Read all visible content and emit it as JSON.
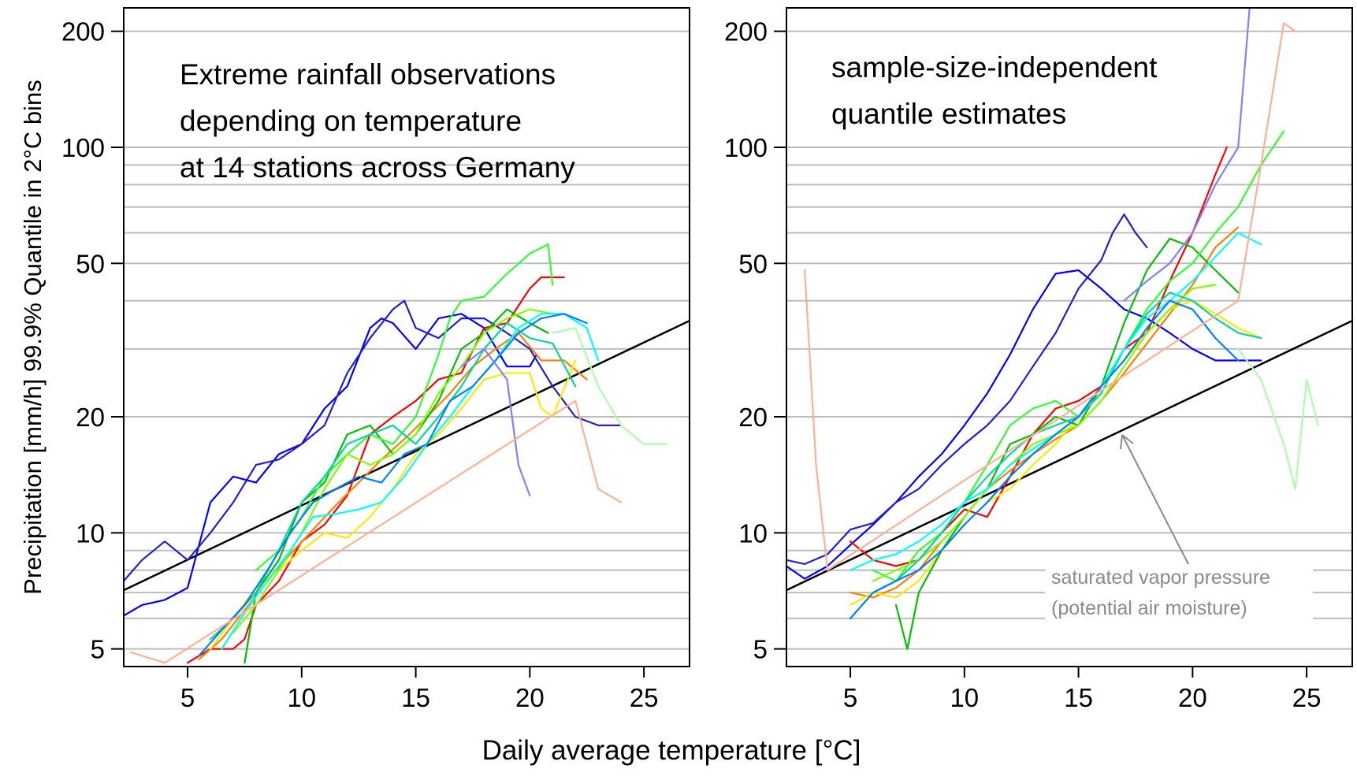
{
  "shared": {
    "ylabel": "Precipitation [mm/h]  99.9% Quantile in 2°C bins",
    "xlabel": "Daily average temperature  [°C]"
  },
  "chart_data": [
    {
      "type": "line",
      "panel": "left",
      "title_lines": [
        "Extreme rainfall observations",
        "depending on temperature",
        "at 14 stations across Germany"
      ],
      "x_ticks": [
        5,
        10,
        15,
        20,
        25
      ],
      "y_ticks": [
        5,
        10,
        20,
        50,
        100,
        200
      ],
      "y_scale": "log",
      "xlim": [
        2.2,
        27
      ],
      "ylim": [
        4.5,
        230
      ],
      "grid": "horizontal gray lines",
      "reference_line": {
        "label": "",
        "x": [
          2.2,
          27
        ],
        "y": [
          7.1,
          35.5
        ],
        "color": "#000000"
      },
      "series": [
        {
          "color": "#0000ff",
          "x": [
            2.2,
            3,
            4,
            5,
            6,
            7,
            8,
            9,
            10,
            11,
            12,
            13,
            13.5,
            14,
            15,
            16,
            17,
            18,
            19,
            20,
            20.3
          ],
          "y": [
            6.1,
            6.5,
            6.7,
            7.2,
            12,
            14,
            13.5,
            16,
            17,
            21,
            24,
            34,
            36,
            35,
            30,
            36,
            37,
            34,
            27,
            27,
            29
          ]
        },
        {
          "color": "#1f1fcf",
          "x": [
            2.2,
            3,
            4,
            5,
            6,
            7,
            8,
            9,
            10,
            11,
            12,
            13,
            14,
            14.5,
            15,
            16,
            17,
            18,
            19,
            20,
            21,
            22,
            23,
            24
          ],
          "y": [
            7.5,
            8.5,
            9.5,
            8.5,
            10,
            12,
            15,
            15.5,
            17,
            19,
            26,
            32,
            38,
            40,
            34,
            32,
            36,
            36,
            33,
            30,
            24,
            20,
            19,
            19
          ]
        },
        {
          "color": "#ff0000",
          "x": [
            5,
            6,
            7,
            7.5,
            8,
            9,
            10,
            11,
            12,
            13,
            14,
            15,
            16,
            17,
            18,
            19,
            20,
            20.5,
            21,
            21.5
          ],
          "y": [
            4.6,
            5,
            5,
            5.3,
            6.5,
            7.5,
            9.5,
            10.5,
            12.5,
            18,
            20,
            22,
            25,
            26,
            34,
            35,
            43,
            46,
            46,
            46
          ]
        },
        {
          "color": "#ff8000",
          "x": [
            5.5,
            6.5,
            7.5,
            8.5,
            9.5,
            10.5,
            11.5,
            12.5,
            13.5,
            14.5,
            15.5,
            16.5,
            17.5,
            18.5,
            19.5,
            20.5,
            21.5,
            22.5
          ],
          "y": [
            4.7,
            5.3,
            6.3,
            7.5,
            8.8,
            10.2,
            11.8,
            13.5,
            15.5,
            17.5,
            20,
            23,
            27,
            30,
            33,
            28,
            28,
            25
          ]
        },
        {
          "color": "#ffe800",
          "x": [
            6,
            7,
            8,
            9,
            10,
            11,
            12,
            13,
            14,
            15,
            16,
            17,
            18,
            19,
            20,
            20.5,
            21,
            22
          ],
          "y": [
            5,
            6,
            7.2,
            8,
            9,
            10,
            9.7,
            11,
            13,
            16,
            18,
            21,
            25,
            26,
            26,
            21,
            20,
            28
          ]
        },
        {
          "color": "#00c000",
          "x": [
            7.5,
            8,
            9,
            10,
            11,
            12,
            13,
            14,
            15,
            16,
            17,
            18,
            19,
            20,
            20.8
          ],
          "y": [
            4.6,
            7,
            8.5,
            12,
            13.5,
            18,
            19,
            16,
            18,
            22,
            30,
            33,
            38,
            35,
            33
          ]
        },
        {
          "color": "#2fff2f",
          "x": [
            8,
            9,
            10,
            11,
            12,
            13,
            14,
            15,
            16,
            16.5,
            17,
            18,
            19,
            20,
            20.8,
            21
          ],
          "y": [
            8,
            9,
            11,
            14,
            16,
            18,
            17,
            20,
            29,
            36,
            40,
            41,
            47,
            53,
            56,
            44
          ]
        },
        {
          "color": "#7fff00",
          "x": [
            7,
            8,
            9,
            10,
            11,
            12,
            13,
            14,
            15,
            16,
            17,
            18,
            19,
            20,
            21
          ],
          "y": [
            5.5,
            6.5,
            8,
            10,
            13,
            16,
            15,
            16,
            18,
            23,
            27,
            33,
            36,
            38,
            37
          ]
        },
        {
          "color": "#00d8a0",
          "x": [
            6,
            7,
            8,
            9,
            10,
            11,
            12,
            13,
            14,
            15,
            16,
            17,
            18,
            19,
            20,
            21,
            22
          ],
          "y": [
            5.3,
            6,
            7,
            9,
            12,
            14,
            17,
            18,
            19,
            17,
            20,
            24,
            30,
            35,
            32,
            31,
            24
          ]
        },
        {
          "color": "#00ffff",
          "x": [
            6.5,
            7.5,
            8.5,
            9.5,
            10.5,
            11.5,
            12.5,
            13.5,
            14.5,
            15.5,
            16.5,
            17.5,
            18.5,
            19.5,
            20.5,
            21.5,
            22.5,
            23
          ],
          "y": [
            5,
            6.2,
            7.5,
            9,
            11,
            11.2,
            11.5,
            12,
            14,
            17,
            20,
            24,
            28,
            34,
            37,
            37,
            34,
            28
          ]
        },
        {
          "color": "#0080ff",
          "x": [
            5.5,
            6.5,
            7.5,
            8.5,
            9.5,
            10.5,
            11.5,
            12.5,
            13.5,
            14.5,
            15.5,
            16.5,
            17.5,
            18.5,
            19.5,
            20.5,
            21.5,
            22.5
          ],
          "y": [
            4.8,
            5.6,
            6.5,
            8,
            10,
            12,
            13,
            14,
            13.5,
            16,
            17,
            22,
            24,
            28,
            33,
            36,
            37,
            35
          ]
        },
        {
          "color": "#8080ff",
          "x": [
            17,
            18,
            19,
            19.5,
            20
          ],
          "y": [
            27,
            30,
            25,
            15,
            12.5
          ]
        },
        {
          "color": "#ffb090",
          "x": [
            2.5,
            3,
            4,
            22,
            23,
            24
          ],
          "y": [
            4.9,
            4.8,
            4.6,
            22,
            13,
            12
          ]
        },
        {
          "color": "#aaffaa",
          "x": [
            21,
            22,
            23,
            24,
            25,
            26
          ],
          "y": [
            33,
            34,
            24,
            19,
            17,
            17
          ]
        }
      ]
    },
    {
      "type": "line",
      "panel": "right",
      "title_lines": [
        "sample-size-independent",
        "quantile estimates"
      ],
      "x_ticks": [
        5,
        10,
        15,
        20,
        25
      ],
      "y_ticks": [
        5,
        10,
        20,
        50,
        100,
        200
      ],
      "y_scale": "log",
      "xlim": [
        2.2,
        27
      ],
      "ylim": [
        4.5,
        230
      ],
      "grid": "horizontal gray lines",
      "reference_line": {
        "label": "",
        "x": [
          2.2,
          27
        ],
        "y": [
          7.1,
          35.5
        ],
        "color": "#000000"
      },
      "annotation_lines": [
        "saturated vapor pressure",
        "(potential air moisture)"
      ],
      "series": [
        {
          "color": "#0000ff",
          "x": [
            2.2,
            3,
            4,
            5,
            6,
            7,
            8,
            9,
            10,
            11,
            12,
            13,
            14,
            15,
            16,
            17,
            18,
            19,
            20,
            21,
            22,
            23
          ],
          "y": [
            8.2,
            7.6,
            8.2,
            9.3,
            10.5,
            12,
            14,
            16,
            19,
            23,
            29,
            38,
            47,
            48,
            43,
            38,
            36,
            33,
            30,
            28,
            28,
            28
          ]
        },
        {
          "color": "#1f1fcf",
          "x": [
            2.2,
            3,
            4,
            5,
            6,
            7,
            8,
            9,
            10,
            11,
            12,
            13,
            14,
            15,
            16,
            16.5,
            17,
            17.5,
            18
          ],
          "y": [
            8.5,
            8.3,
            8.8,
            10.2,
            10.6,
            12,
            13,
            15,
            17,
            19,
            22,
            27,
            33,
            43,
            51,
            60,
            67,
            60,
            55
          ]
        },
        {
          "color": "#ff0000",
          "x": [
            5,
            6,
            7,
            8,
            9,
            10,
            11,
            12,
            13,
            14,
            15,
            16,
            17,
            18,
            19,
            20,
            21,
            21.5
          ],
          "y": [
            9.5,
            8.5,
            8.2,
            8.5,
            10,
            11.5,
            11,
            14,
            18,
            21,
            22,
            24,
            30,
            33,
            45,
            60,
            85,
            100
          ]
        },
        {
          "color": "#ff8000",
          "x": [
            5,
            6,
            7,
            8,
            9,
            10,
            11,
            12,
            13,
            14,
            15,
            16,
            17,
            18,
            19,
            20,
            21,
            22
          ],
          "y": [
            7,
            6.8,
            7.2,
            8,
            9.5,
            11,
            13,
            14.5,
            16,
            17.5,
            19,
            22,
            26,
            31,
            37,
            44,
            55,
            62
          ]
        },
        {
          "color": "#ffe800",
          "x": [
            5,
            6,
            7,
            8,
            9,
            10,
            11,
            12,
            13,
            14,
            15,
            16,
            17,
            18,
            19,
            20,
            21,
            22,
            23
          ],
          "y": [
            6.5,
            7,
            6.8,
            7.5,
            9,
            10.5,
            12,
            13,
            15,
            17,
            20,
            24,
            28,
            33,
            38,
            40,
            37,
            34,
            32
          ]
        },
        {
          "color": "#00c000",
          "x": [
            7,
            7.5,
            8,
            9,
            10,
            11,
            12,
            13,
            14,
            15,
            16,
            17,
            18,
            19,
            20,
            21,
            22
          ],
          "y": [
            6.5,
            5,
            7,
            9,
            11,
            13,
            17,
            18,
            20,
            19,
            24,
            35,
            48,
            58,
            55,
            48,
            42
          ]
        },
        {
          "color": "#2fff2f",
          "x": [
            6,
            7,
            8,
            9,
            10,
            11,
            12,
            13,
            14,
            15,
            16,
            17,
            18,
            19,
            20,
            21,
            22,
            23,
            24
          ],
          "y": [
            8,
            7.5,
            9,
            10,
            12,
            15,
            19,
            21,
            22,
            20,
            23,
            30,
            38,
            45,
            50,
            60,
            70,
            90,
            110
          ]
        },
        {
          "color": "#7fff00",
          "x": [
            6,
            7,
            8,
            9,
            10,
            11,
            12,
            13,
            14,
            15,
            16,
            17,
            18,
            19,
            20,
            21
          ],
          "y": [
            7.5,
            8,
            8.5,
            9.5,
            11,
            13,
            15,
            17,
            18,
            19,
            22,
            27,
            33,
            38,
            43,
            44
          ]
        },
        {
          "color": "#00d8a0",
          "x": [
            6,
            7,
            8,
            9,
            10,
            11,
            12,
            13,
            14,
            15,
            16,
            17,
            18,
            19,
            20,
            21,
            22,
            23
          ],
          "y": [
            7,
            7.5,
            8.5,
            10,
            12,
            14,
            16,
            18,
            19,
            20,
            23,
            30,
            37,
            42,
            40,
            36,
            33,
            32
          ]
        },
        {
          "color": "#00ffff",
          "x": [
            5,
            6,
            7,
            8,
            9,
            10,
            11,
            12,
            13,
            14,
            15,
            16,
            17,
            18,
            19,
            20,
            21,
            22,
            23
          ],
          "y": [
            8,
            8.5,
            8.8,
            9.5,
            10.5,
            12,
            13,
            15,
            16.5,
            18,
            20,
            24,
            30,
            36,
            40,
            45,
            52,
            60,
            56
          ]
        },
        {
          "color": "#0080ff",
          "x": [
            5,
            6,
            7,
            8,
            9,
            10,
            11,
            12,
            13,
            14,
            15,
            16,
            17,
            18,
            19,
            20,
            21,
            22
          ],
          "y": [
            6,
            7,
            7.5,
            8,
            9,
            10.5,
            12,
            14,
            16,
            18,
            20,
            24,
            28,
            34,
            40,
            38,
            32,
            28
          ]
        },
        {
          "color": "#8080ff",
          "x": [
            17,
            18,
            19,
            20,
            21,
            22,
            22.5
          ],
          "y": [
            40,
            45,
            50,
            60,
            80,
            100,
            230
          ]
        },
        {
          "color": "#ffb090",
          "x": [
            3,
            3.5,
            4,
            22,
            23,
            24,
            24.5
          ],
          "y": [
            48,
            15,
            8,
            40,
            90,
            210,
            200
          ]
        },
        {
          "color": "#aaffaa",
          "x": [
            22,
            23,
            24,
            24.5,
            25,
            25.5
          ],
          "y": [
            30,
            25,
            17,
            13,
            25,
            19
          ]
        }
      ]
    }
  ]
}
